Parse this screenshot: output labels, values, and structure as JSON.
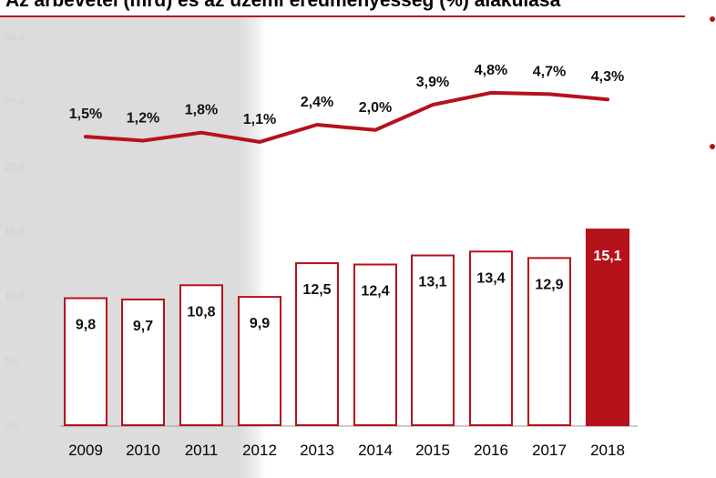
{
  "header": {
    "title": "Az árbevétel (mrd) és az üzemi eredményesség (%) alakulása"
  },
  "colors": {
    "accent": "#b5121b",
    "panel": "#dcdcdc"
  },
  "chart_data": {
    "type": "bar",
    "categories": [
      "2009",
      "2010",
      "2011",
      "2012",
      "2013",
      "2014",
      "2015",
      "2016",
      "2017",
      "2018"
    ],
    "series": [
      {
        "type": "bar",
        "values": [
          9.8,
          9.7,
          10.8,
          9.9,
          12.5,
          12.4,
          13.1,
          13.4,
          12.9,
          15.1
        ],
        "labels": [
          "9,8",
          "9,7",
          "10,8",
          "9,9",
          "12,5",
          "12,4",
          "13,1",
          "13,4",
          "12,9",
          "15,1"
        ],
        "highlight_index": 9
      },
      {
        "type": "line",
        "values": [
          1.5,
          1.2,
          1.8,
          1.1,
          2.4,
          2.0,
          3.9,
          4.8,
          4.7,
          4.3
        ],
        "labels": [
          "1,5%",
          "1,2%",
          "1,8%",
          "1,1%",
          "2,4%",
          "2,0%",
          "3,9%",
          "4,8%",
          "4,7%",
          "4,3%"
        ]
      }
    ],
    "yticks": [
      "0,0",
      "5,0",
      "10,0",
      "15,0",
      "20,0",
      "25,0",
      "30,0"
    ],
    "ylim": [
      0,
      30
    ],
    "grid": false
  }
}
